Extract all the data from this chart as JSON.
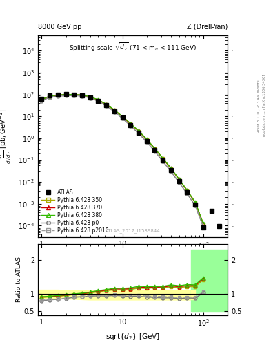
{
  "title_left": "8000 GeV pp",
  "title_right": "Z (Drell-Yan)",
  "inner_title": "Splitting scale $\\sqrt{\\mathbf{d_2}}$ (71 < m$_{ll}$ < 111 GeV)",
  "ylabel_main": "d$\\sigma$/dsqrt($d_2$) [pb,GeV$^{-1}$]",
  "ylabel_ratio": "Ratio to ATLAS",
  "xlabel": "sqrt{d_2} [GeV]",
  "watermark": "ATLAS_2017_I1589844",
  "right_label1": "Rivet 3.1.10, ≥ 3.4M events",
  "right_label2": "mcplots.cern.ch [arXiv:1306.3436]",
  "atlas_x": [
    1.0,
    1.26,
    1.58,
    2.0,
    2.51,
    3.16,
    3.98,
    5.01,
    6.31,
    7.94,
    10.0,
    12.6,
    15.8,
    20.0,
    25.1,
    31.6,
    39.8,
    50.1,
    63.1,
    79.4,
    100.0,
    125.9,
    158.5
  ],
  "atlas_y": [
    65.0,
    90.0,
    100.0,
    102.0,
    100.0,
    92.0,
    75.0,
    52.0,
    32.0,
    17.0,
    8.5,
    4.0,
    1.8,
    0.75,
    0.28,
    0.1,
    0.034,
    0.011,
    0.0033,
    0.00095,
    8.5e-05,
    0.00048,
    9.5e-05
  ],
  "py350_x": [
    1.0,
    1.26,
    1.58,
    2.0,
    2.51,
    3.16,
    3.98,
    5.01,
    6.31,
    7.94,
    10.0,
    12.6,
    15.8,
    20.0,
    25.1,
    31.6,
    39.8,
    50.1,
    63.1,
    79.4,
    100.0
  ],
  "py350_y": [
    58.0,
    82.0,
    93.0,
    97.0,
    98.0,
    92.0,
    77.0,
    55.0,
    35.0,
    19.0,
    9.5,
    4.5,
    2.1,
    0.87,
    0.33,
    0.118,
    0.041,
    0.013,
    0.004,
    0.00115,
    0.00012
  ],
  "py370_x": [
    1.0,
    1.26,
    1.58,
    2.0,
    2.51,
    3.16,
    3.98,
    5.01,
    6.31,
    7.94,
    10.0,
    12.6,
    15.8,
    20.0,
    25.1,
    31.6,
    39.8,
    50.1,
    63.1,
    79.4,
    100.0
  ],
  "py370_y": [
    59.0,
    83.0,
    94.0,
    98.0,
    99.0,
    93.0,
    78.0,
    56.0,
    35.5,
    19.5,
    9.7,
    4.6,
    2.15,
    0.89,
    0.335,
    0.12,
    0.042,
    0.0133,
    0.0041,
    0.00118,
    0.000123
  ],
  "py380_x": [
    1.0,
    1.26,
    1.58,
    2.0,
    2.51,
    3.16,
    3.98,
    5.01,
    6.31,
    7.94,
    10.0,
    12.6,
    15.8,
    20.0,
    25.1,
    31.6,
    39.8,
    50.1,
    63.1,
    79.4,
    100.0
  ],
  "py380_y": [
    59.5,
    84.0,
    95.0,
    99.0,
    100.0,
    94.0,
    79.0,
    57.0,
    36.0,
    19.8,
    9.9,
    4.7,
    2.2,
    0.91,
    0.34,
    0.122,
    0.043,
    0.0136,
    0.0042,
    0.0012,
    0.000125
  ],
  "pyp0_x": [
    1.0,
    1.26,
    1.58,
    2.0,
    2.51,
    3.16,
    3.98,
    5.01,
    6.31,
    7.94,
    10.0,
    12.6,
    15.8,
    20.0,
    25.1,
    31.6,
    39.8,
    50.1,
    63.1,
    79.4,
    100.0
  ],
  "pyp0_y": [
    52.0,
    74.0,
    84.0,
    88.0,
    90.0,
    84.0,
    70.0,
    49.0,
    30.0,
    16.2,
    8.0,
    3.7,
    1.68,
    0.68,
    0.25,
    0.088,
    0.03,
    0.0095,
    0.0029,
    0.00083,
    8.8e-05
  ],
  "pyp2010_x": [
    1.0,
    1.26,
    1.58,
    2.0,
    2.51,
    3.16,
    3.98,
    5.01,
    6.31,
    7.94,
    10.0,
    12.6,
    15.8,
    20.0,
    25.1,
    31.6,
    39.8,
    50.1,
    63.1,
    79.4,
    100.0
  ],
  "pyp2010_y": [
    53.0,
    75.0,
    85.0,
    89.0,
    91.0,
    85.0,
    71.0,
    50.0,
    31.0,
    16.7,
    8.2,
    3.85,
    1.73,
    0.7,
    0.26,
    0.092,
    0.031,
    0.0098,
    0.003,
    0.00086,
    9e-05
  ],
  "color_atlas": "#000000",
  "color_py350": "#aaaa00",
  "color_py370": "#cc0000",
  "color_py380": "#33bb00",
  "color_pyp0": "#777777",
  "color_pyp2010": "#999999",
  "color_yellow": "#ffff99",
  "color_green": "#99ff99"
}
